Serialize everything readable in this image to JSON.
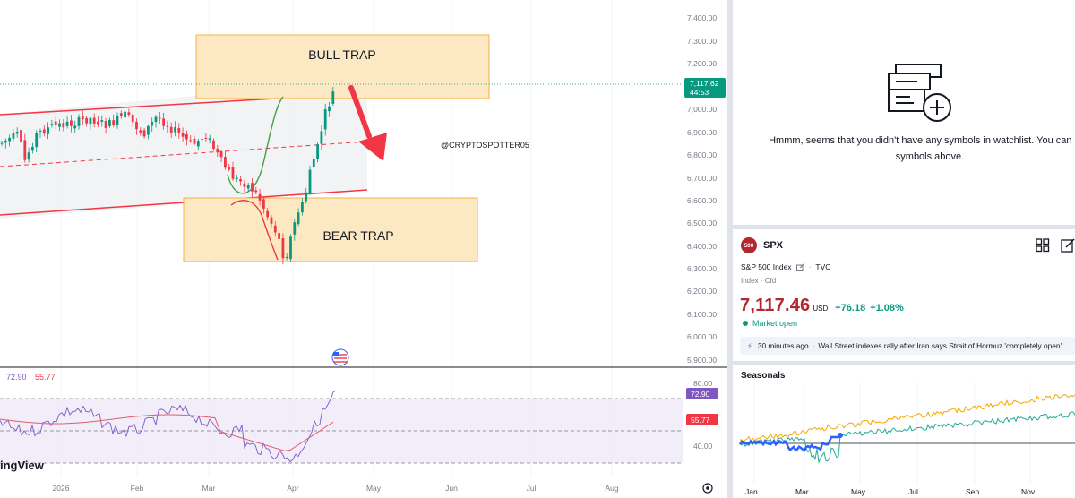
{
  "chart": {
    "price_ticks": [
      "7,400.00",
      "7,300.00",
      "7,200.00",
      "7,000.00",
      "6,900.00",
      "6,800.00",
      "6,700.00",
      "6,600.00",
      "6,500.00",
      "6,400.00",
      "6,300.00",
      "6,200.00",
      "6,100.00",
      "6,000.00",
      "5,900.00"
    ],
    "price_tag": {
      "value": "7,117.62",
      "countdown": "44:53"
    },
    "time_labels": [
      "2026",
      "Feb",
      "Mar",
      "Apr",
      "May",
      "Jun",
      "Jul",
      "Aug"
    ],
    "annotations": {
      "bull_trap": "BULL TRAP",
      "bear_trap": "BEAR TRAP",
      "watermark": "@CRYPTOSPOTTER05"
    },
    "brand_text": "ingView",
    "colors": {
      "up": "#089981",
      "down": "#f23645",
      "channel": "#f23645",
      "trap_fill": "#fce9c4",
      "trap_border": "#f5b042",
      "rsi_line": "#7e57c2",
      "rsi_ma": "#e35a6d"
    }
  },
  "rsi": {
    "values_label": {
      "rsi": "72.90",
      "ma": "55.77"
    },
    "ticks": [
      "80.00",
      "40.00"
    ],
    "badges": {
      "rsi": "72.90",
      "ma": "55.77"
    }
  },
  "watchlist": {
    "empty_text": "Hmmm, seems that you didn't have any symbols in watchlist. You can add symbols above."
  },
  "symbol": {
    "badge": "500",
    "ticker": "SPX",
    "full_name": "S&P 500 Index",
    "exchange": "TVC",
    "type": "Index",
    "sub_type": "Cfd",
    "price": "7,117.46",
    "currency": "USD",
    "change": "+76.18",
    "change_pct": "+1.08%",
    "market_status": "Market open",
    "news_time": "30 minutes ago",
    "news_headline": "Wall Street indexes rally after Iran says Strait of Hormuz 'completely open'"
  },
  "seasonals": {
    "title": "Seasonals",
    "months": [
      "Jan",
      "Mar",
      "May",
      "Jul",
      "Sep",
      "Nov"
    ],
    "colors": {
      "current": "#2962ff",
      "year_a": "#f7a600",
      "year_b": "#22ab94"
    }
  }
}
